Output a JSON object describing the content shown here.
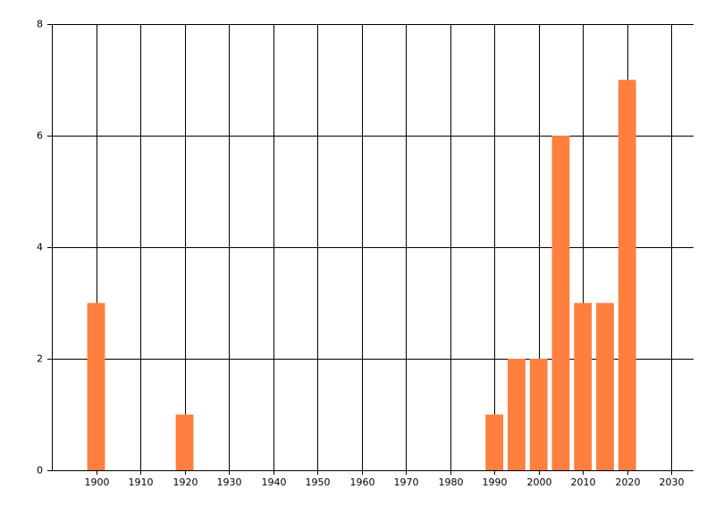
{
  "chart_data": {
    "type": "bar",
    "x": [
      1900,
      1920,
      1990,
      1995,
      2000,
      2005,
      2010,
      2015,
      2020
    ],
    "values": [
      3,
      1,
      1,
      2,
      2,
      6,
      3,
      3,
      7
    ],
    "color": "#ff7f3f",
    "xlim": [
      1890,
      2035
    ],
    "xticks": [
      1900,
      1910,
      1920,
      1930,
      1940,
      1950,
      1960,
      1970,
      1980,
      1990,
      2000,
      2010,
      2020,
      2030
    ],
    "ylim": [
      0,
      8
    ],
    "yticks": [
      0,
      2,
      4,
      6,
      8
    ],
    "grid": true
  }
}
